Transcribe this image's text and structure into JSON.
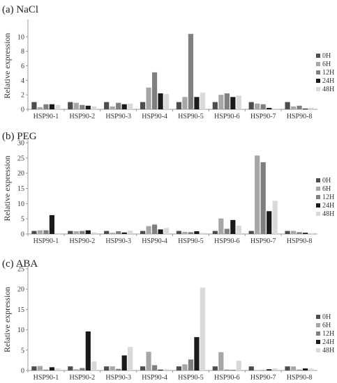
{
  "legend": [
    "0H",
    "6H",
    "12H",
    "24H",
    "48H"
  ],
  "colors": [
    "#4d4d4d",
    "#a6a6a6",
    "#7f7f7f",
    "#1a1a1a",
    "#d9d9d9"
  ],
  "chart_data": [
    {
      "type": "bar",
      "title": "(a) NaCl",
      "ylabel": "Relative expression",
      "ylim": [
        0,
        12
      ],
      "yticks": [
        0,
        2,
        4,
        6,
        8,
        10
      ],
      "categories": [
        "HSP90-1",
        "HSP90-2",
        "HSP90-3",
        "HSP90-4",
        "HSP90-5",
        "HSP90-6",
        "HSP90-7",
        "HSP90-8"
      ],
      "series": [
        {
          "name": "0H",
          "values": [
            1.0,
            1.0,
            1.0,
            1.0,
            1.0,
            1.0,
            1.0,
            1.0
          ]
        },
        {
          "name": "6H",
          "values": [
            0.3,
            0.9,
            0.4,
            3.0,
            1.7,
            2.0,
            0.8,
            0.4
          ]
        },
        {
          "name": "12H",
          "values": [
            0.7,
            0.6,
            0.9,
            5.1,
            10.4,
            2.2,
            0.7,
            0.5
          ]
        },
        {
          "name": "24H",
          "values": [
            0.7,
            0.5,
            0.7,
            2.2,
            1.7,
            1.7,
            0.2,
            0.1
          ]
        },
        {
          "name": "48H",
          "values": [
            0.6,
            0.4,
            0.8,
            2.1,
            2.3,
            1.9,
            0.1,
            0.2
          ]
        }
      ]
    },
    {
      "type": "bar",
      "title": "(b) PEG",
      "ylabel": "Relative expression",
      "ylim": [
        0,
        30
      ],
      "yticks": [
        0,
        5,
        10,
        15,
        20,
        25,
        30
      ],
      "categories": [
        "HSP90-1",
        "HSP90-2",
        "HSP90-3",
        "HSP90-4",
        "HSP90-5",
        "HSP90-6",
        "HSP90-7",
        "HSP90-8"
      ],
      "series": [
        {
          "name": "0H",
          "values": [
            1.0,
            1.0,
            1.0,
            1.0,
            1.0,
            1.0,
            1.0,
            1.0
          ]
        },
        {
          "name": "6H",
          "values": [
            1.2,
            0.9,
            0.4,
            2.6,
            0.7,
            5.1,
            25.8,
            1.0
          ]
        },
        {
          "name": "12H",
          "values": [
            1.2,
            1.0,
            0.9,
            3.1,
            0.6,
            1.7,
            23.6,
            0.6
          ]
        },
        {
          "name": "24H",
          "values": [
            6.2,
            1.2,
            0.5,
            1.5,
            0.9,
            4.6,
            7.5,
            0.4
          ]
        },
        {
          "name": "48H",
          "values": [
            0.3,
            0.5,
            1.1,
            2.0,
            0.4,
            2.7,
            10.9,
            0.3
          ]
        }
      ]
    },
    {
      "type": "bar",
      "title": "(c) ABA",
      "ylabel": "Relative expression",
      "ylim": [
        0,
        25
      ],
      "yticks": [
        0,
        5,
        10,
        15,
        20,
        25
      ],
      "categories": [
        "HSP90-1",
        "HSP90-2",
        "HSP90-3",
        "HSP90-4",
        "HSP90-5",
        "HSP90-6",
        "HSP90-7",
        "HSP90-8"
      ],
      "series": [
        {
          "name": "0H",
          "values": [
            1.0,
            1.0,
            1.0,
            1.0,
            1.0,
            1.0,
            1.0,
            1.0
          ]
        },
        {
          "name": "6H",
          "values": [
            1.1,
            0.3,
            1.0,
            4.6,
            1.5,
            4.5,
            0.1,
            1.0
          ]
        },
        {
          "name": "12H",
          "values": [
            0.2,
            0.6,
            0.4,
            1.3,
            2.7,
            0.2,
            0.1,
            0.2
          ]
        },
        {
          "name": "24H",
          "values": [
            0.8,
            9.6,
            3.7,
            0.2,
            8.2,
            0.1,
            0.3,
            0.5
          ]
        },
        {
          "name": "48H",
          "values": [
            0.5,
            2.2,
            5.8,
            0.3,
            20.4,
            2.4,
            0.5,
            0.4
          ]
        }
      ]
    }
  ]
}
